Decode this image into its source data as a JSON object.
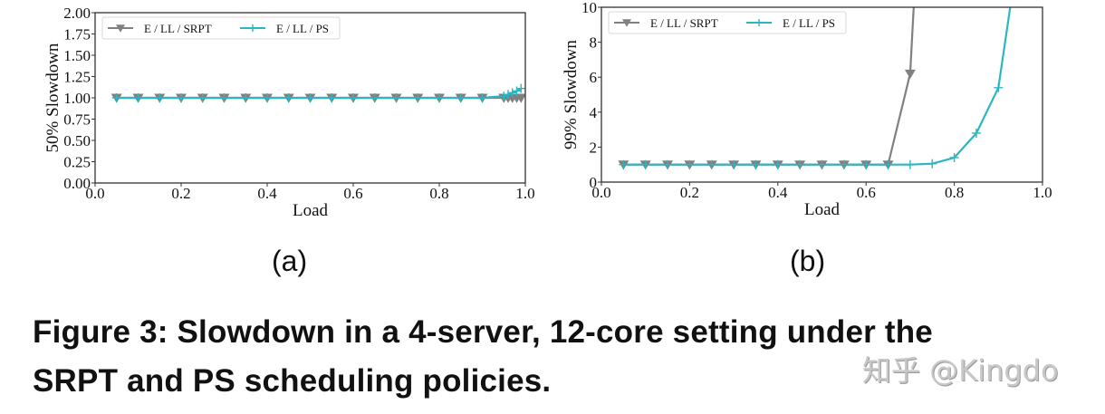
{
  "figure": {
    "subfigure_labels": [
      "(a)",
      "(b)"
    ],
    "caption_line1": "Figure 3: Slowdown in a 4-server, 12-core setting under the",
    "caption_line2": "SRPT and PS scheduling policies.",
    "watermark": "知乎 @Kingdo"
  },
  "colors": {
    "srpt": "#808080",
    "ps": "#2ab7c2",
    "axis": "#333333",
    "legend_border": "#d9d9d9"
  },
  "chart_data": [
    {
      "type": "line",
      "id": "a",
      "title": "",
      "xlabel": "Load",
      "ylabel": "50% Slowdown",
      "xlim": [
        0.0,
        1.0
      ],
      "ylim": [
        0.0,
        2.0
      ],
      "xticks": [
        "0.0",
        "0.2",
        "0.4",
        "0.6",
        "0.8",
        "1.0"
      ],
      "yticks": [
        "0.00",
        "0.25",
        "0.50",
        "0.75",
        "1.00",
        "1.25",
        "1.50",
        "1.75",
        "2.00"
      ],
      "grid": false,
      "legend_position": "upper left",
      "series": [
        {
          "name": "E / LL / SRPT",
          "marker": "triangle-down",
          "x": [
            0.05,
            0.1,
            0.15,
            0.2,
            0.25,
            0.3,
            0.35,
            0.4,
            0.45,
            0.5,
            0.55,
            0.6,
            0.65,
            0.7,
            0.75,
            0.8,
            0.85,
            0.9,
            0.95,
            0.96,
            0.97,
            0.98,
            0.99
          ],
          "y": [
            1.0,
            1.0,
            1.0,
            1.0,
            1.0,
            1.0,
            1.0,
            1.0,
            1.0,
            1.0,
            1.0,
            1.0,
            1.0,
            1.0,
            1.0,
            1.0,
            1.0,
            1.0,
            1.0,
            1.0,
            1.0,
            1.0,
            1.0
          ]
        },
        {
          "name": "E / LL / PS",
          "marker": "plus",
          "x": [
            0.05,
            0.1,
            0.15,
            0.2,
            0.25,
            0.3,
            0.35,
            0.4,
            0.45,
            0.5,
            0.55,
            0.6,
            0.65,
            0.7,
            0.75,
            0.8,
            0.85,
            0.9,
            0.95,
            0.96,
            0.97,
            0.98,
            0.99
          ],
          "y": [
            1.0,
            1.0,
            1.0,
            1.0,
            1.0,
            1.0,
            1.0,
            1.0,
            1.0,
            1.0,
            1.0,
            1.0,
            1.0,
            1.0,
            1.0,
            1.0,
            1.0,
            1.0,
            1.02,
            1.04,
            1.06,
            1.08,
            1.11
          ]
        }
      ]
    },
    {
      "type": "line",
      "id": "b",
      "title": "",
      "xlabel": "Load",
      "ylabel": "99% Slowdown",
      "xlim": [
        0.0,
        1.0
      ],
      "ylim": [
        0,
        10
      ],
      "xticks": [
        "0.0",
        "0.2",
        "0.4",
        "0.6",
        "0.8",
        "1.0"
      ],
      "yticks": [
        "0",
        "2",
        "4",
        "6",
        "8",
        "10"
      ],
      "grid": false,
      "legend_position": "upper left",
      "series": [
        {
          "name": "E / LL / SRPT",
          "marker": "triangle-down",
          "x": [
            0.05,
            0.1,
            0.15,
            0.2,
            0.25,
            0.3,
            0.35,
            0.4,
            0.45,
            0.5,
            0.55,
            0.6,
            0.65,
            0.7,
            0.75
          ],
          "y": [
            1.0,
            1.0,
            1.0,
            1.0,
            1.0,
            1.0,
            1.0,
            1.0,
            1.0,
            1.0,
            1.0,
            1.0,
            1.0,
            6.2,
            30.0
          ]
        },
        {
          "name": "E / LL / PS",
          "marker": "plus",
          "x": [
            0.05,
            0.1,
            0.15,
            0.2,
            0.25,
            0.3,
            0.35,
            0.4,
            0.45,
            0.5,
            0.55,
            0.6,
            0.65,
            0.7,
            0.75,
            0.8,
            0.85,
            0.9,
            0.95
          ],
          "y": [
            1.0,
            1.0,
            1.0,
            1.0,
            1.0,
            1.0,
            1.0,
            1.0,
            1.0,
            1.0,
            1.0,
            1.0,
            1.0,
            1.0,
            1.05,
            1.4,
            2.8,
            5.4,
            14.0
          ]
        }
      ]
    }
  ]
}
